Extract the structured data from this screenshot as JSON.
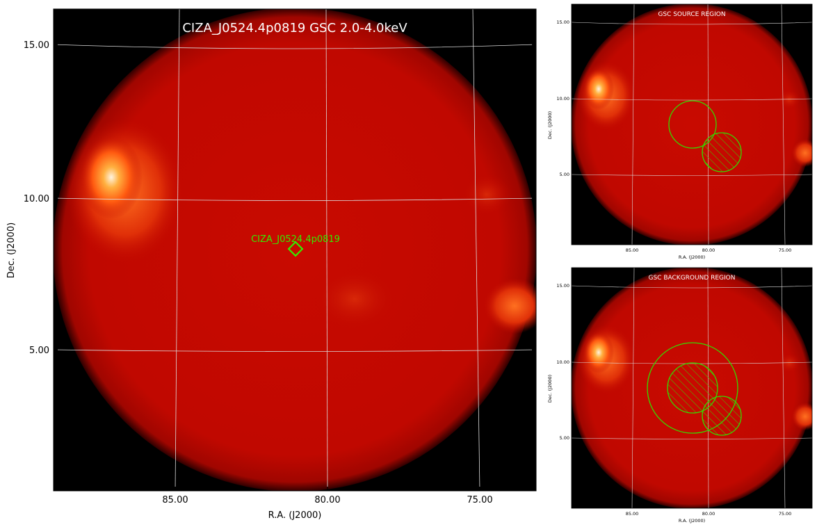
{
  "main": {
    "title": "CIZA_J0524.4p0819 GSC 2.0-4.0keV",
    "source_label": "CIZA_J0524.4p0819",
    "xlabel": "R.A. (J2000)",
    "ylabel": "Dec. (J2000)",
    "xticks": [
      "85.00",
      "80.00",
      "75.00"
    ],
    "yticks": [
      "15.00",
      "10.00",
      "5.00"
    ]
  },
  "panel_source": {
    "title": "GSC SOURCE REGION",
    "xlabel": "R.A. (J2000)",
    "ylabel": "Dec. (J2000)",
    "xticks": [
      "85.00",
      "80.00",
      "75.00"
    ],
    "yticks": [
      "15.00",
      "10.00",
      "5.00"
    ]
  },
  "panel_background": {
    "title": "GSC BACKGROUND REGION",
    "xlabel": "R.A. (J2000)",
    "ylabel": "Dec. (J2000)",
    "xticks": [
      "85.00",
      "80.00",
      "75.00"
    ],
    "yticks": [
      "15.00",
      "10.00",
      "5.00"
    ]
  },
  "colors": {
    "disk": "#c40800",
    "region": "#33dd00",
    "grid": "#dddddd",
    "sky": "#000000"
  }
}
